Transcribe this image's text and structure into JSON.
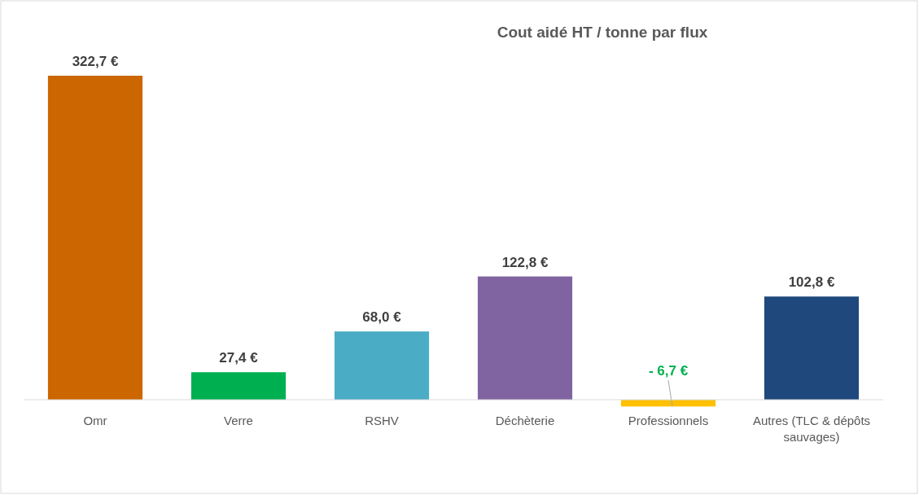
{
  "chart_data": {
    "type": "bar",
    "title": "Cout aidé HT / tonne par flux",
    "categories": [
      "Omr",
      "Verre",
      "RSHV",
      "Déchèterie",
      "Professionnels",
      "Autres (TLC & dépôts sauvages)"
    ],
    "values": [
      322.7,
      27.4,
      68.0,
      122.8,
      -6.7,
      102.8
    ],
    "colors": [
      "#cc6600",
      "#00b050",
      "#4bacc6",
      "#8064a2",
      "#ffc000",
      "#1f497d"
    ],
    "value_labels": [
      "322,7 €",
      "27,4 €",
      "68,0 €",
      "122,8 €",
      "- 6,7 €",
      "102,8 €"
    ]
  }
}
